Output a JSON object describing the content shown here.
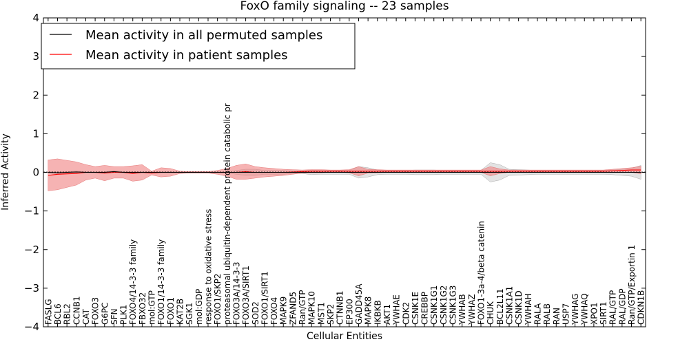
{
  "chart_data": {
    "type": "line",
    "title": "FoxO family signaling -- 23 samples",
    "xlabel": "Cellular Entities",
    "ylabel": "Inferred Activity",
    "ylim": [
      -4,
      4
    ],
    "yticks": [
      -4,
      -3,
      -2,
      -1,
      0,
      1,
      2,
      3,
      4
    ],
    "ytick_labels": [
      "−4",
      "−3",
      "−2",
      "−1",
      "0",
      "1",
      "2",
      "3",
      "4"
    ],
    "legend_position": "top-left",
    "categories": [
      "FASLG",
      "BCL6",
      "RBL2",
      "CCNB1",
      "CAT",
      "FOXO3",
      "G6PC",
      "SFN",
      "PLK1",
      "FOXO4/14-3-3 family",
      "FBXO32",
      "mol:GTP",
      "FOXO1/14-3-3 family",
      "FOXO1",
      "KAT2B",
      "SGK1",
      "mol:GDP",
      "response to oxidative stress",
      "FOXO1/SKP2",
      "proteasomal ubiquitin-dependent protein catabolic pr",
      "FOXO3A/14-3-3",
      "FOXO3A/SIRT1",
      "SOD2",
      "FOXO1/SIRT1",
      "FOXO4",
      "MAPK9",
      "ZFAND5",
      "Ran/GTP",
      "MAPK10",
      "MST1",
      "SKP2",
      "CTNNB1",
      "EP300",
      "GADD45A",
      "MAPK8",
      "IKBKB",
      "AKT1",
      "YWHAE",
      "CDK2",
      "CSNK1E",
      "CREBBP",
      "CSNK1G1",
      "CSNK1G2",
      "CSNK1G3",
      "YWHAB",
      "YWHAZ",
      "FOXO1-3a-4/beta catenin",
      "CHUK",
      "BCL2L11",
      "CSNK1A1",
      "CSNK1D",
      "YWHAH",
      "RALA",
      "RALB",
      "RAN",
      "USP7",
      "YWHAG",
      "YWHAQ",
      "XPO1",
      "SIRT1",
      "RAL/GTP",
      "RAL/GDP",
      "Ran/GTP/Exportin 1",
      "CDKN1B"
    ],
    "series": [
      {
        "name": "Mean activity in all permuted samples",
        "color": "#000000",
        "band_color": "#cccccc",
        "values": [
          0,
          -0.01,
          0,
          0.01,
          0,
          0,
          0,
          0.02,
          0,
          0,
          0,
          0,
          0,
          0,
          0,
          0,
          0,
          0,
          0,
          0,
          0,
          0,
          0,
          0,
          0,
          0,
          0,
          0,
          0,
          0,
          0,
          0,
          0,
          0,
          0,
          0,
          0,
          0,
          0,
          0,
          0,
          0,
          0,
          0,
          0,
          0,
          0,
          0,
          0,
          0,
          0,
          0,
          0,
          0,
          0,
          0,
          0,
          0,
          0,
          0,
          0,
          0,
          0,
          0
        ],
        "band": [
          0.02,
          0.02,
          0.02,
          0.02,
          0.02,
          0.02,
          0.02,
          0.02,
          0.02,
          0.02,
          0.02,
          0.02,
          0.02,
          0.02,
          0.02,
          0.02,
          0.02,
          0.02,
          0.02,
          0.02,
          0.05,
          0.08,
          0.08,
          0.05,
          0.05,
          0.05,
          0.03,
          0.03,
          0.06,
          0.05,
          0.05,
          0.05,
          0.05,
          0.15,
          0.12,
          0.06,
          0.05,
          0.05,
          0.05,
          0.06,
          0.06,
          0.06,
          0.05,
          0.05,
          0.05,
          0.05,
          0.05,
          0.25,
          0.2,
          0.08,
          0.07,
          0.06,
          0.05,
          0.05,
          0.05,
          0.05,
          0.05,
          0.05,
          0.05,
          0.05,
          0.06,
          0.08,
          0.1,
          0.18
        ]
      },
      {
        "name": "Mean activity in patient samples",
        "color": "#ff0000",
        "band_color": "#f08080",
        "values": [
          -0.08,
          -0.05,
          -0.04,
          -0.03,
          0,
          0,
          -0.02,
          0,
          0,
          -0.03,
          0,
          -0.02,
          0,
          0,
          0,
          0,
          0,
          0,
          0,
          0,
          0,
          0.02,
          0,
          0,
          0,
          0,
          0.01,
          0.02,
          0.03,
          0.03,
          0.03,
          0.03,
          0.03,
          0.03,
          0.03,
          0.03,
          0.03,
          0.03,
          0.03,
          0.03,
          0.03,
          0.03,
          0.03,
          0.03,
          0.03,
          0.03,
          0.03,
          0.03,
          0.03,
          0.03,
          0.03,
          0.03,
          0.03,
          0.03,
          0.03,
          0.03,
          0.03,
          0.03,
          0.03,
          0.03,
          0.04,
          0.05,
          0.06,
          0.06
        ],
        "band": [
          0.4,
          0.4,
          0.35,
          0.3,
          0.2,
          0.15,
          0.2,
          0.15,
          0.15,
          0.2,
          0.2,
          0.05,
          0.12,
          0.1,
          0.03,
          0.02,
          0.02,
          0.02,
          0.05,
          0.1,
          0.18,
          0.2,
          0.15,
          0.12,
          0.1,
          0.08,
          0.06,
          0.04,
          0.04,
          0.04,
          0.03,
          0.03,
          0.04,
          0.12,
          0.05,
          0.04,
          0.03,
          0.03,
          0.03,
          0.03,
          0.03,
          0.03,
          0.03,
          0.03,
          0.03,
          0.03,
          0.03,
          0.12,
          0.06,
          0.03,
          0.03,
          0.03,
          0.03,
          0.03,
          0.03,
          0.03,
          0.03,
          0.03,
          0.03,
          0.03,
          0.04,
          0.05,
          0.06,
          0.1
        ]
      }
    ]
  }
}
